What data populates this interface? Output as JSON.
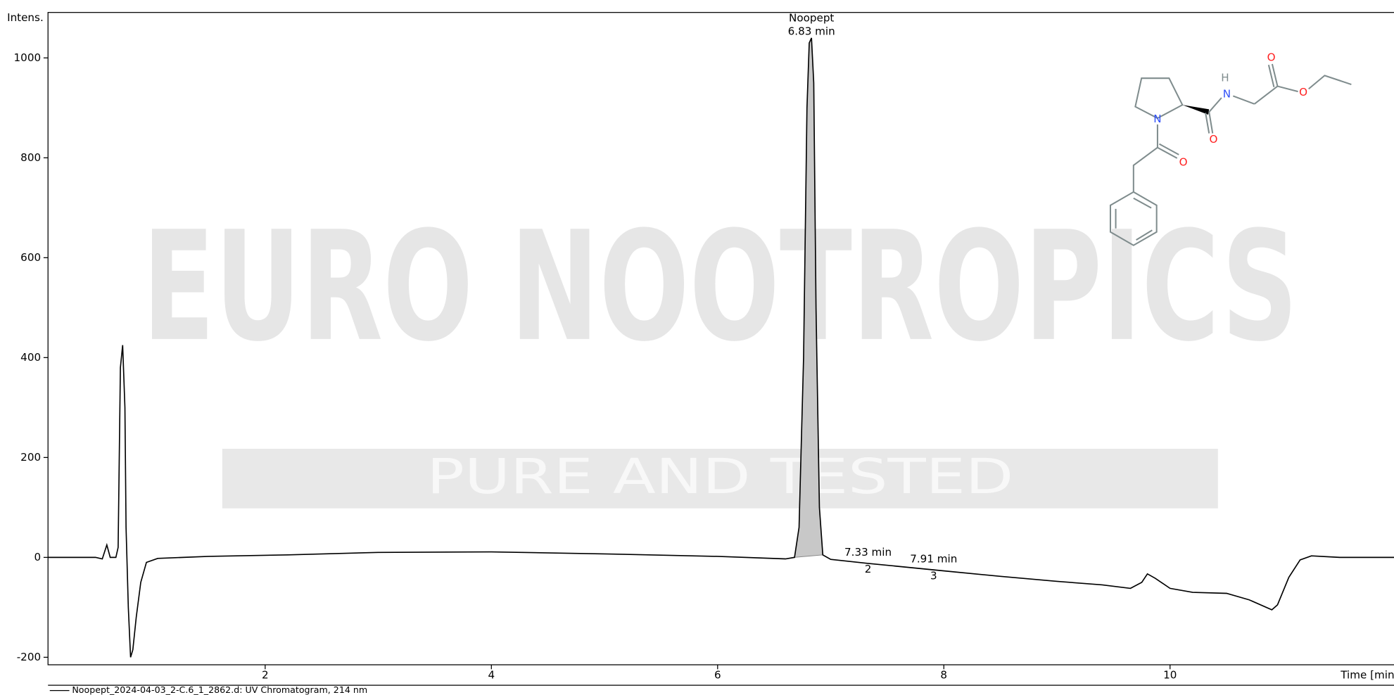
{
  "chart_data": {
    "type": "line",
    "y_label": "Intens.",
    "x_label": "Time [min]",
    "xlim": [
      0.08,
      11.98
    ],
    "ylim": [
      -215,
      1091
    ],
    "xticks": [
      2,
      4,
      6,
      8,
      10
    ],
    "yticks": [
      -200,
      0,
      200,
      400,
      600,
      800,
      1000
    ],
    "series": [
      {
        "name": "Noopept_2024-04-03_2-C.6_1_2862.d: UV Chromatogram, 214 nm",
        "color": "#000000",
        "x": [
          0.08,
          0.5,
          0.56,
          0.6,
          0.63,
          0.68,
          0.7,
          0.72,
          0.74,
          0.76,
          0.77,
          0.79,
          0.81,
          0.83,
          0.86,
          0.9,
          0.95,
          1.05,
          1.5,
          2.2,
          3,
          4,
          5,
          6,
          6.6,
          6.68,
          6.72,
          6.76,
          6.79,
          6.81,
          6.83,
          6.85,
          6.87,
          6.9,
          6.93,
          7.0,
          7.33,
          7.91,
          8.5,
          9.0,
          9.4,
          9.65,
          9.75,
          9.8,
          9.87,
          10.0,
          10.2,
          10.5,
          10.7,
          10.9,
          10.95,
          11.05,
          11.15,
          11.25,
          11.5,
          11.98
        ],
        "values": [
          0,
          0,
          -3,
          25,
          0,
          0,
          20,
          380,
          425,
          300,
          60,
          -100,
          -200,
          -185,
          -120,
          -50,
          -10,
          -2,
          2,
          5,
          10,
          11,
          7,
          2,
          -3,
          0,
          60,
          400,
          900,
          1030,
          1040,
          950,
          500,
          100,
          5,
          -4,
          -12,
          -25,
          -38,
          -48,
          -55,
          -62,
          -50,
          -33,
          -42,
          -62,
          -70,
          -72,
          -85,
          -105,
          -95,
          -40,
          -5,
          3,
          0,
          0
        ]
      }
    ],
    "peaks": [
      {
        "name": "Noopept",
        "time": 6.83,
        "time_label": "6.83 min",
        "range": [
          6.67,
          6.93
        ]
      },
      {
        "name": "2",
        "time": 7.33,
        "time_label": "7.33 min"
      },
      {
        "name": "3",
        "time": 7.91,
        "time_label": "7.91 min"
      }
    ],
    "watermark": [
      "EURO NOOTROPICS",
      "PURE AND TESTED"
    ],
    "structure_atoms": [
      "N",
      "O",
      "N",
      "H",
      "O",
      "O",
      "O"
    ]
  }
}
